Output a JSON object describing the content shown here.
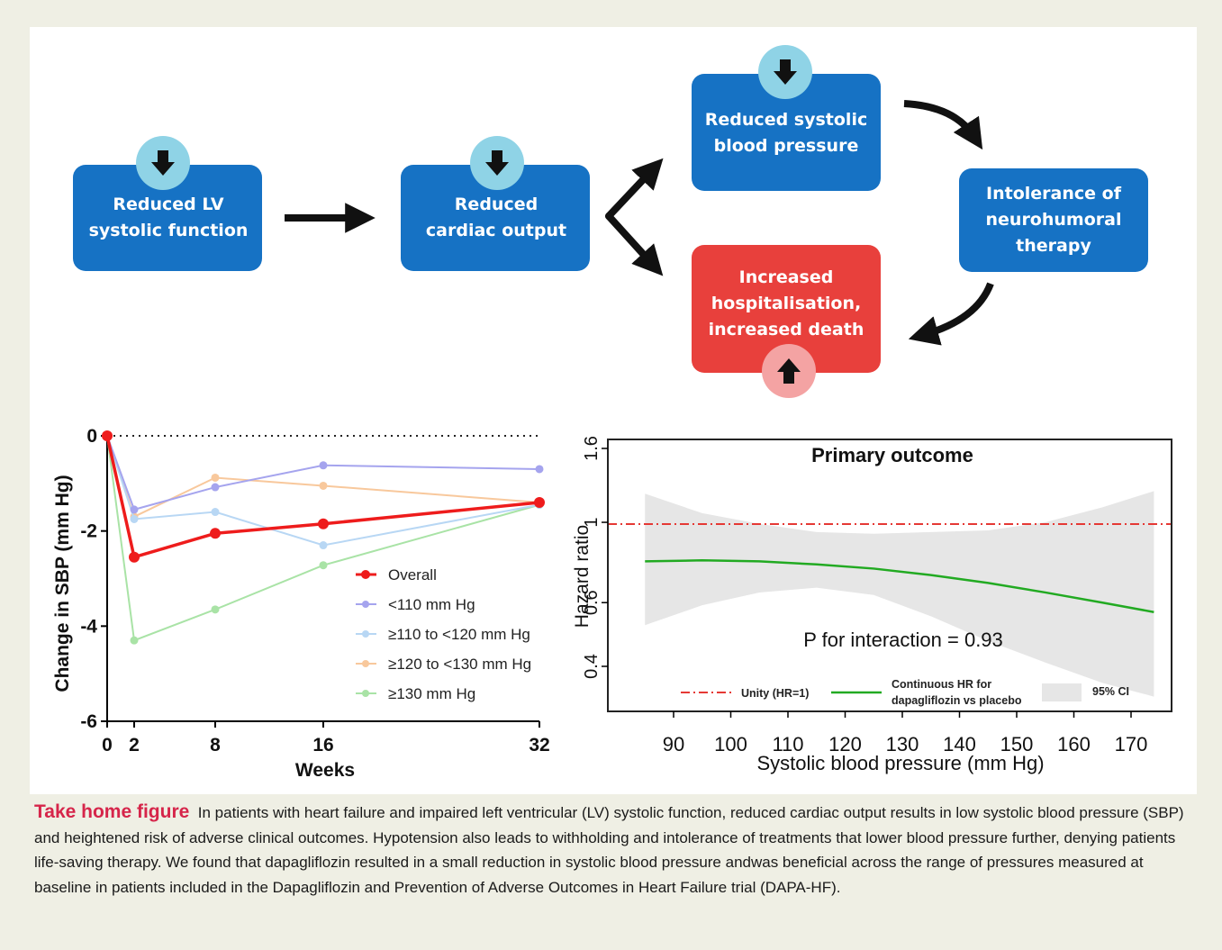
{
  "flow": {
    "boxes": [
      {
        "id": "lv",
        "lines": [
          "Reduced LV",
          "systolic function"
        ],
        "color": "#1672c4",
        "badge": "down"
      },
      {
        "id": "co",
        "lines": [
          "Reduced",
          "cardiac output"
        ],
        "color": "#1672c4",
        "badge": "down"
      },
      {
        "id": "sbp",
        "lines": [
          "Reduced systolic",
          "blood pressure"
        ],
        "color": "#1672c4",
        "badge": "down"
      },
      {
        "id": "nh",
        "lines": [
          "Intolerance of",
          "neurohumoral",
          "therapy"
        ],
        "color": "#1672c4",
        "badge": null
      },
      {
        "id": "hosp",
        "lines": [
          "Increased",
          "hospitalisation,",
          "increased death"
        ],
        "color": "#e8403c",
        "badge": "up"
      }
    ]
  },
  "chart_data": [
    {
      "type": "line",
      "xlabel": "Weeks",
      "ylabel": "Change in SBP (mm Hg)",
      "x": [
        0,
        2,
        8,
        16,
        32
      ],
      "xticks": [
        "0",
        "2",
        "8",
        "16",
        "32"
      ],
      "yticks": [
        "0",
        "-2",
        "-4",
        "-6"
      ],
      "xlim": [
        0,
        32
      ],
      "ylim": [
        -6,
        0
      ],
      "reference_line": 0,
      "legend_position": "center-right",
      "series": [
        {
          "name": "Overall",
          "color": "#ee1c1c",
          "values": [
            0,
            -2.55,
            -2.05,
            -1.85,
            -1.4
          ]
        },
        {
          "name": "<110 mm Hg",
          "color": "#a5a4ee",
          "values": [
            0,
            -1.55,
            -1.08,
            -0.62,
            -0.7
          ]
        },
        {
          "name": "≥110 to <120 mm Hg",
          "color": "#b8d7f4",
          "values": [
            0,
            -1.75,
            -1.6,
            -2.3,
            -1.45
          ]
        },
        {
          "name": "≥120 to <130 mm Hg",
          "color": "#f8c89c",
          "values": [
            0,
            -1.7,
            -0.88,
            -1.05,
            -1.4
          ]
        },
        {
          "name": "≥130 mm Hg",
          "color": "#a9e3a6",
          "values": [
            0,
            -4.3,
            -3.65,
            -2.72,
            -1.45
          ]
        }
      ]
    },
    {
      "type": "line",
      "title": "Primary outcome",
      "xlabel": "Systolic blood pressure (mm Hg)",
      "ylabel": "Hazard ratio",
      "xticks": [
        "90",
        "100",
        "110",
        "120",
        "130",
        "140",
        "150",
        "160",
        "170"
      ],
      "yticks": [
        "0.4",
        "0.6",
        "1",
        "1.6"
      ],
      "xlim": [
        85,
        175
      ],
      "log_y": true,
      "annotation": "P for interaction = 0.93",
      "legend": [
        "Unity (HR=1)",
        "Continuous HR for dapagliflozin vs placebo",
        "95% CI"
      ],
      "legend_position": "bottom",
      "series": [
        {
          "name": "Continuous HR for dapagliflozin vs placebo",
          "color": "#22aa22",
          "x": [
            85,
            95,
            105,
            115,
            125,
            135,
            145,
            155,
            165,
            174
          ],
          "values": [
            0.78,
            0.785,
            0.78,
            0.765,
            0.745,
            0.715,
            0.68,
            0.64,
            0.6,
            0.565
          ]
        },
        {
          "name": "95% CI",
          "color": "#e6e6e6",
          "x": [
            85,
            95,
            105,
            115,
            125,
            135,
            145,
            155,
            165,
            174
          ],
          "lower": [
            0.52,
            0.59,
            0.64,
            0.66,
            0.63,
            0.55,
            0.47,
            0.41,
            0.36,
            0.33
          ],
          "upper": [
            1.2,
            1.06,
            0.99,
            0.94,
            0.93,
            0.94,
            0.95,
            1.0,
            1.1,
            1.22
          ]
        },
        {
          "name": "Unity (HR=1)",
          "color": "#e53935",
          "values": [
            1,
            1
          ]
        }
      ]
    }
  ],
  "caption": {
    "title": "Take home figure",
    "text": "In patients with heart failure and impaired left ventricular (LV) systolic function, reduced cardiac output results in low systolic blood pressure (SBP) and heightened risk of adverse clinical outcomes. Hypotension also leads to withholding and intolerance of treatments that lower blood pressure further, denying patients life-saving therapy. We found that dapagliflozin resulted in a small reduction in systolic blood pressure andwas beneficial across the range of pressures measured at baseline in patients included in the Dapagliflozin and Prevention of Adverse Outcomes in Heart Failure trial (DAPA-HF)."
  }
}
